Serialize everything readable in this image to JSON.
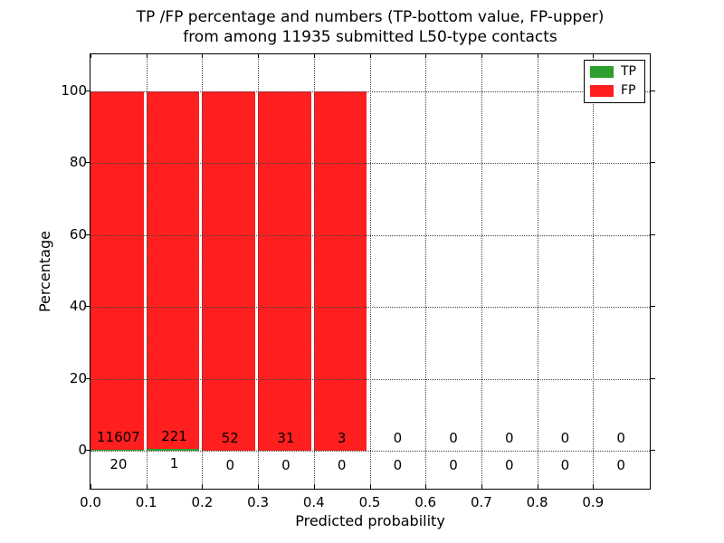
{
  "title": {
    "line1": "TP /FP percentage and numbers (TP-bottom value, FP-upper)",
    "line2": "from among 11935 submitted L50-type contacts"
  },
  "legend": {
    "items": [
      {
        "label": "TP",
        "color": "#2e9e2e"
      },
      {
        "label": "FP",
        "color": "#ff1f1f"
      }
    ]
  },
  "chart_data": {
    "type": "bar",
    "stacked": true,
    "title": "TP /FP percentage and numbers (TP-bottom value, FP-upper) from among 11935 submitted L50-type contacts",
    "xlabel": "Predicted probability",
    "ylabel": "Percentage",
    "total_submitted": 11935,
    "bins": {
      "start": 0.0,
      "width": 0.1,
      "count": 10
    },
    "bin_centers": [
      0.05,
      0.15,
      0.25,
      0.35,
      0.45,
      0.55,
      0.65,
      0.75,
      0.85,
      0.95
    ],
    "series": [
      {
        "name": "TP",
        "color": "#2e9e2e",
        "counts": [
          20,
          1,
          0,
          0,
          0,
          0,
          0,
          0,
          0,
          0
        ]
      },
      {
        "name": "FP",
        "color": "#ff1f1f",
        "counts": [
          11607,
          221,
          52,
          31,
          3,
          0,
          0,
          0,
          0,
          0
        ]
      }
    ],
    "tp_pct": [
      0.17,
      0.45,
      0,
      0,
      0,
      0,
      0,
      0,
      0,
      0
    ],
    "fp_pct": [
      99.83,
      99.55,
      100,
      100,
      100,
      0,
      0,
      0,
      0,
      0
    ],
    "xticks": [
      "0.0",
      "0.1",
      "0.2",
      "0.3",
      "0.4",
      "0.5",
      "0.6",
      "0.7",
      "0.8",
      "0.9"
    ],
    "yticks": [
      "0",
      "20",
      "40",
      "60",
      "80",
      "100"
    ],
    "xlim": [
      0.0,
      1.0
    ],
    "ylim": [
      -11,
      110
    ],
    "grid": "dotted",
    "legend_position": "upper right"
  }
}
